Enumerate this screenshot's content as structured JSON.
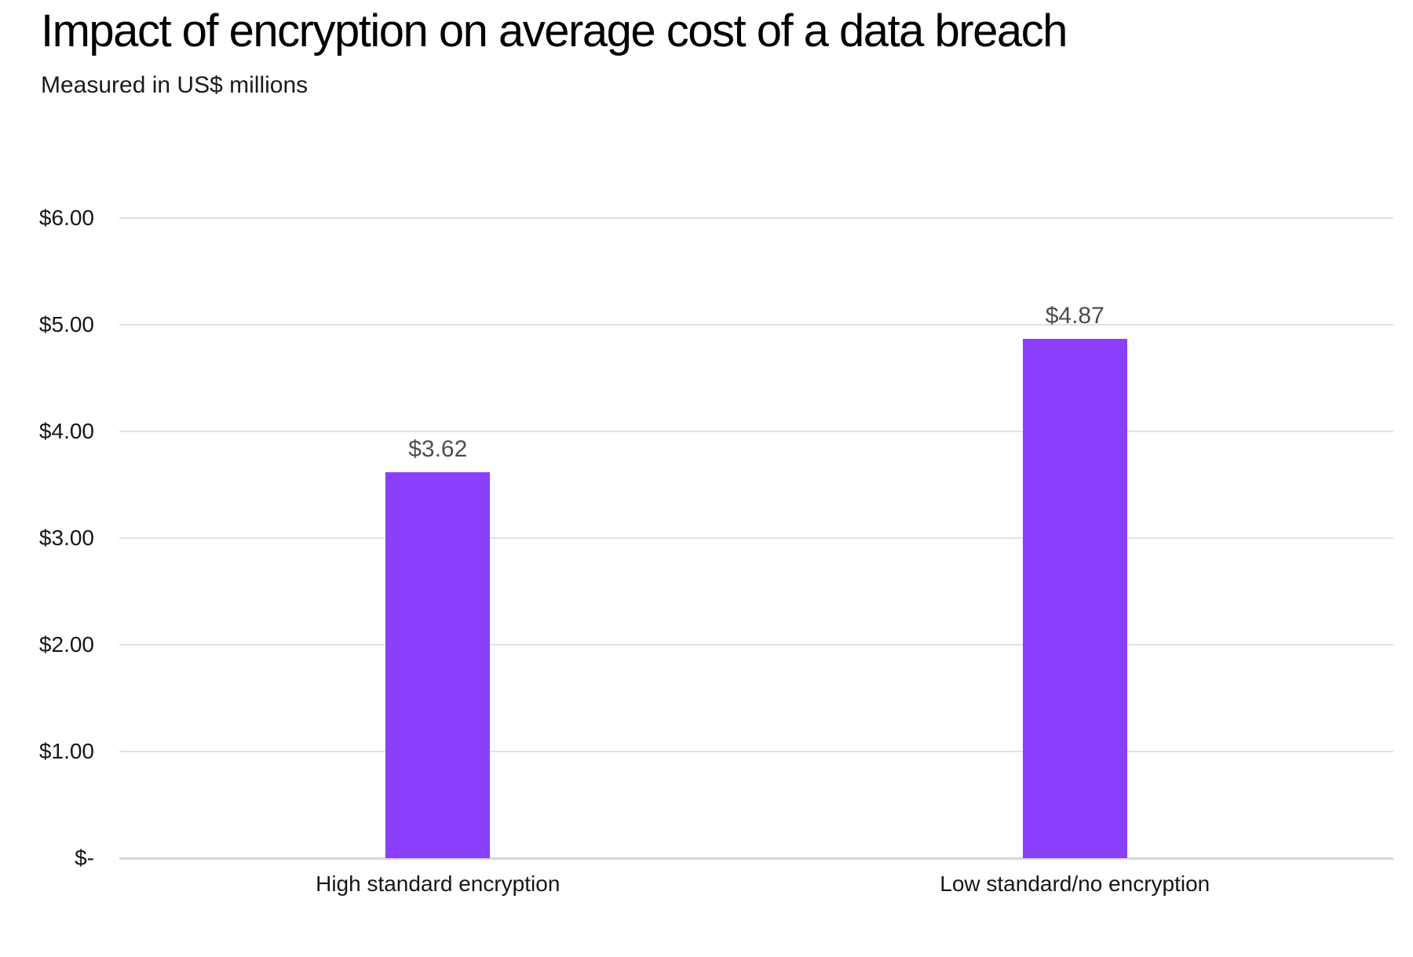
{
  "header": {
    "title": "Impact of encryption on average cost of a data breach",
    "subtitle": "Measured in US$ millions"
  },
  "colors": {
    "background": "#ffffff",
    "bar": "#8a3ffc",
    "gridline": "#e2e2e2",
    "zero_line": "#d9d9d9",
    "title_text": "#000000",
    "subtitle_text": "#1a1a1a",
    "tick_text": "#161616",
    "category_text": "#161616",
    "value_label_text": "#4d4d4d"
  },
  "chart_data": {
    "type": "bar",
    "title": "Impact of encryption on average cost of a data breach",
    "subtitle": "Measured in US$ millions",
    "categories": [
      "High standard encryption",
      "Low standard/no encryption"
    ],
    "values": [
      3.62,
      4.87
    ],
    "data_labels": [
      "$3.62",
      "$4.87"
    ],
    "xlabel": "",
    "ylabel": "US$ millions",
    "ylim": [
      0,
      6
    ],
    "yticks": [
      {
        "value": 0,
        "label": "$-"
      },
      {
        "value": 1,
        "label": "$1.00"
      },
      {
        "value": 2,
        "label": "$2.00"
      },
      {
        "value": 3,
        "label": "$3.00"
      },
      {
        "value": 4,
        "label": "$4.00"
      },
      {
        "value": 5,
        "label": "$5.00"
      },
      {
        "value": 6,
        "label": "$6.00"
      }
    ],
    "grid": "horizontal",
    "legend": "none",
    "bar_color": "#8a3ffc"
  }
}
